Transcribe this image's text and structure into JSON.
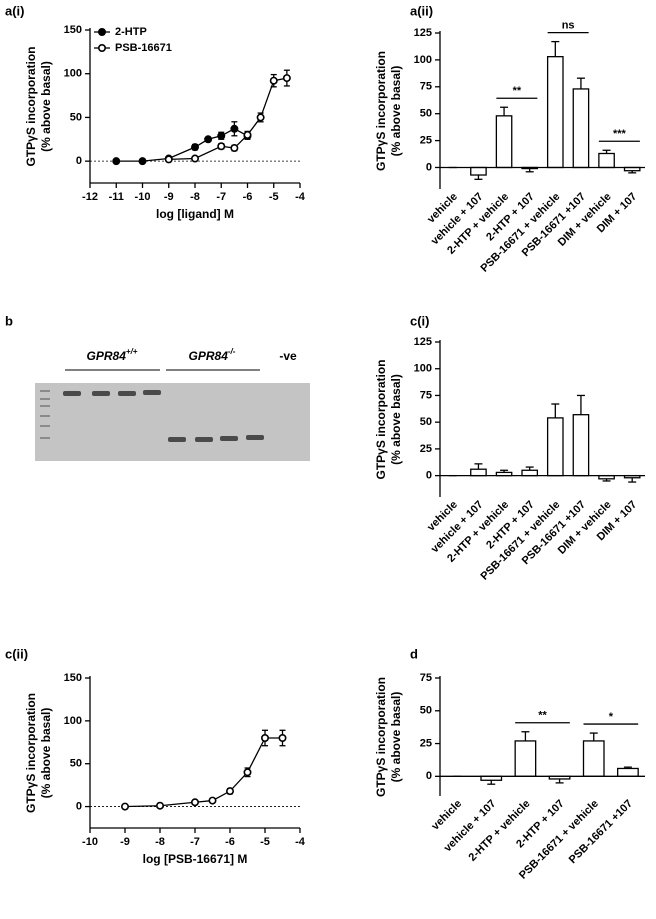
{
  "chart_data": [
    {
      "type": "line",
      "label": "a(i)",
      "xlabel": "log [ligand] M",
      "ylabel": [
        "GTPγS incorporation",
        "(% above basal)"
      ],
      "xlim": [
        -12,
        -4
      ],
      "xticks": [
        -12,
        -11,
        -10,
        -9,
        -8,
        -7,
        -6,
        -5,
        -4
      ],
      "ylim": [
        -25,
        150
      ],
      "yticks": [
        0,
        50,
        100,
        150
      ],
      "zero_line": true,
      "legend": "upper left",
      "series": [
        {
          "name": "2-HTP",
          "color": "#000000",
          "marker": "filled",
          "x": [
            -11,
            -10,
            -9,
            -8,
            -7.5,
            -7,
            -6.5,
            -6
          ],
          "values": [
            0,
            0,
            3,
            16,
            25,
            29,
            37,
            29
          ],
          "errors": [
            1,
            1,
            2,
            3,
            2,
            4,
            8,
            4
          ]
        },
        {
          "name": "PSB-16671",
          "color": "#000000",
          "marker": "open",
          "x": [
            -9,
            -8,
            -7,
            -6.5,
            -6,
            -5.5,
            -5,
            -4.5
          ],
          "values": [
            2,
            3,
            17,
            15,
            30,
            50,
            92,
            95
          ],
          "errors": [
            1,
            1,
            3,
            3,
            4,
            5,
            7,
            9
          ]
        }
      ]
    },
    {
      "type": "bar",
      "label": "a(ii)",
      "ylabel": [
        "GTPγS incorporation",
        "(% above basal)"
      ],
      "categories": [
        "vehicle",
        "vehicle + 107",
        "2-HTP + vehicle",
        "2-HTP + 107",
        "PSB-16671 + vehicle",
        "PSB-16671 +107",
        "DIM + vehicle",
        "DIM + 107"
      ],
      "values": [
        0,
        -7,
        48,
        -1,
        103,
        73,
        13,
        -3
      ],
      "errors": [
        0,
        4,
        8,
        3,
        14,
        10,
        3,
        2
      ],
      "color": "#ffffff",
      "ylim": [
        -20,
        125
      ],
      "yticks": [
        0,
        25,
        50,
        75,
        100,
        125
      ],
      "annotations": [
        "**",
        "ns",
        "***"
      ]
    },
    {
      "type": "bar",
      "label": "c(i)",
      "ylabel": [
        "GTPγS incorporation",
        "(% above basal)"
      ],
      "categories": [
        "vehicle",
        "vehicle + 107",
        "2-HTP + vehicle",
        "2-HTP + 107",
        "PSB-16671 + vehicle",
        "PSB-16671 +107",
        "DIM + vehicle",
        "DIM + 107"
      ],
      "values": [
        0,
        6,
        3,
        5,
        54,
        57,
        -3,
        -2
      ],
      "errors": [
        0,
        5,
        2,
        3,
        13,
        18,
        2,
        4
      ],
      "color": "#ffffff",
      "ylim": [
        -20,
        125
      ],
      "yticks": [
        0,
        25,
        50,
        75,
        100,
        125
      ]
    },
    {
      "type": "line",
      "label": "c(ii)",
      "xlabel": "log [PSB-16671] M",
      "ylabel": [
        "GTPγS incorporation",
        "(% above basal)"
      ],
      "xlim": [
        -10,
        -4
      ],
      "xticks": [
        -10,
        -9,
        -8,
        -7,
        -6,
        -5,
        -4
      ],
      "ylim": [
        -25,
        150
      ],
      "yticks": [
        0,
        50,
        100,
        150
      ],
      "zero_line": true,
      "series": [
        {
          "color": "#000000",
          "marker": "open",
          "x": [
            -9,
            -8,
            -7,
            -6.5,
            -6,
            -5.5,
            -5,
            -4.5
          ],
          "values": [
            0,
            1,
            5,
            7,
            18,
            40,
            80,
            80
          ],
          "errors": [
            1,
            1,
            2,
            2,
            3,
            5,
            9,
            9
          ]
        }
      ]
    },
    {
      "type": "bar",
      "label": "d",
      "ylabel": [
        "GTPγS incorporation",
        "(% above basal)"
      ],
      "categories": [
        "vehicle",
        "vehicle + 107",
        "2-HTP + vehicle",
        "2-HTP + 107",
        "PSB-16671 + vehicle",
        "PSB-16671 +107"
      ],
      "values": [
        0,
        -3,
        27,
        -2,
        27,
        6
      ],
      "errors": [
        0,
        3,
        7,
        3,
        6,
        1
      ],
      "color": "#ffffff",
      "ylim": [
        -15,
        75
      ],
      "yticks": [
        0,
        25,
        50,
        75
      ],
      "annotations": [
        "**",
        "*"
      ]
    }
  ],
  "gel": {
    "label": "b",
    "groups": [
      {
        "name": "GPR84",
        "superscript": "+/+"
      },
      {
        "name": "GPR84",
        "superscript": "-/-"
      }
    ],
    "control": "-ve"
  }
}
